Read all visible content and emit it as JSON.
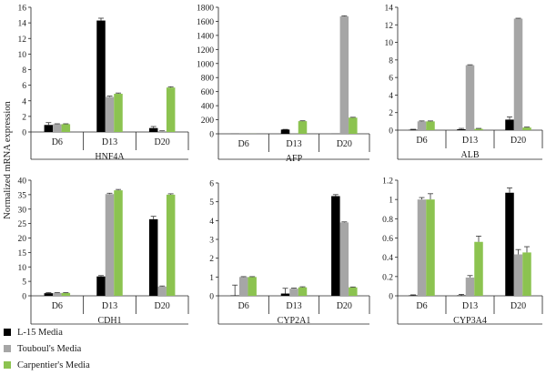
{
  "y_axis_label": "Normalized mRNA expression",
  "colors": {
    "L-15 Media": "#000000",
    "Touboul's Media": "#a6a6a6",
    "Carpentier's Media": "#8cc350"
  },
  "legend": [
    "L-15 Media",
    "Touboul's Media",
    "Carpentier's Media"
  ],
  "chart_data": [
    {
      "type": "bar",
      "xlabel": "HNF4A",
      "ylabel": "",
      "ylim": [
        0,
        16
      ],
      "yticks": [
        0,
        2,
        4,
        6,
        8,
        10,
        12,
        14,
        16
      ],
      "categories": [
        "D6",
        "D13",
        "D20"
      ],
      "series": [
        {
          "name": "L-15 Media",
          "values": [
            0.9,
            14.3,
            0.5
          ],
          "errors": [
            0.3,
            0.3,
            0.2
          ]
        },
        {
          "name": "Touboul's Media",
          "values": [
            1.0,
            4.5,
            0.1
          ],
          "errors": [
            0.05,
            0.1,
            0.05
          ]
        },
        {
          "name": "Carpentier's Media",
          "values": [
            1.0,
            4.9,
            5.7
          ],
          "errors": [
            0.05,
            0.1,
            0.1
          ]
        }
      ]
    },
    {
      "type": "bar",
      "xlabel": "AFP",
      "ylabel": "",
      "ylim": [
        0,
        1800
      ],
      "yticks": [
        0,
        200,
        400,
        600,
        800,
        1000,
        1200,
        1400,
        1600,
        1800
      ],
      "categories": [
        "D6",
        "D13",
        "D20"
      ],
      "series": [
        {
          "name": "L-15 Media",
          "values": [
            1,
            60,
            1
          ],
          "errors": [
            0,
            3,
            0
          ]
        },
        {
          "name": "Touboul's Media",
          "values": [
            1,
            1,
            1670
          ],
          "errors": [
            0,
            0,
            8
          ]
        },
        {
          "name": "Carpentier's Media",
          "values": [
            1,
            180,
            230
          ],
          "errors": [
            0,
            5,
            5
          ]
        }
      ]
    },
    {
      "type": "bar",
      "xlabel": "ALB",
      "ylabel": "",
      "ylim": [
        0,
        14
      ],
      "yticks": [
        0,
        2,
        4,
        6,
        8,
        10,
        12,
        14
      ],
      "categories": [
        "D6",
        "D13",
        "D20"
      ],
      "series": [
        {
          "name": "L-15 Media",
          "values": [
            0.05,
            0.1,
            1.2
          ],
          "errors": [
            0.05,
            0.1,
            0.3
          ]
        },
        {
          "name": "Touboul's Media",
          "values": [
            1.0,
            7.4,
            12.7
          ],
          "errors": [
            0.05,
            0.05,
            0.05
          ]
        },
        {
          "name": "Carpentier's Media",
          "values": [
            1.0,
            0.15,
            0.3
          ],
          "errors": [
            0.05,
            0.05,
            0.05
          ]
        }
      ]
    },
    {
      "type": "bar",
      "xlabel": "CDH1",
      "ylabel": "",
      "ylim": [
        0,
        40
      ],
      "yticks": [
        0,
        5,
        10,
        15,
        20,
        25,
        30,
        35,
        40
      ],
      "categories": [
        "D6",
        "D13",
        "D20"
      ],
      "series": [
        {
          "name": "L-15 Media",
          "values": [
            0.9,
            6.7,
            26.5
          ],
          "errors": [
            0.2,
            0.3,
            1.0
          ]
        },
        {
          "name": "Touboul's Media",
          "values": [
            1.0,
            35.2,
            3.2
          ],
          "errors": [
            0.1,
            0.3,
            0.2
          ]
        },
        {
          "name": "Carpentier's Media",
          "values": [
            1.0,
            36.5,
            35.0
          ],
          "errors": [
            0.1,
            0.3,
            0.3
          ]
        }
      ]
    },
    {
      "type": "bar",
      "xlabel": "CYP2A1",
      "ylabel": "",
      "ylim": [
        0,
        6
      ],
      "yticks": [
        0,
        1,
        2,
        3,
        4,
        5,
        6
      ],
      "categories": [
        "D6",
        "D13",
        "D20"
      ],
      "series": [
        {
          "name": "L-15 Media",
          "values": [
            0.02,
            0.12,
            5.3
          ],
          "errors": [
            0.55,
            0.28,
            0.08
          ]
        },
        {
          "name": "Touboul's Media",
          "values": [
            1.0,
            0.38,
            3.9
          ],
          "errors": [
            0.02,
            0.03,
            0.03
          ]
        },
        {
          "name": "Carpentier's Media",
          "values": [
            1.0,
            0.45,
            0.45
          ],
          "errors": [
            0.02,
            0.03,
            0.02
          ]
        }
      ]
    },
    {
      "type": "bar",
      "xlabel": "CYP3A4",
      "ylabel": "",
      "ylim": [
        0,
        1.2
      ],
      "yticks": [
        0,
        0.2,
        0.4,
        0.6,
        0.8,
        1,
        1.2
      ],
      "categories": [
        "D6",
        "D13",
        "D20"
      ],
      "series": [
        {
          "name": "L-15 Media",
          "values": [
            0.005,
            0.005,
            1.07
          ],
          "errors": [
            0.005,
            0.01,
            0.05
          ]
        },
        {
          "name": "Touboul's Media",
          "values": [
            1.0,
            0.19,
            0.43
          ],
          "errors": [
            0.02,
            0.02,
            0.05
          ]
        },
        {
          "name": "Carpentier's Media",
          "values": [
            1.0,
            0.56,
            0.45
          ],
          "errors": [
            0.06,
            0.06,
            0.06
          ]
        }
      ]
    }
  ]
}
